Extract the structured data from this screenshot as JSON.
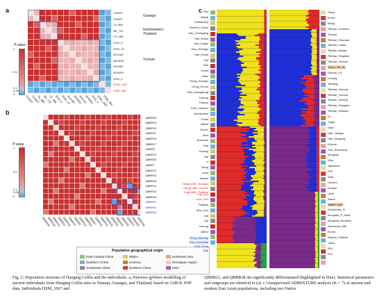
{
  "panel_a": {
    "letter": "a",
    "pvalue_label": "P value",
    "colorbar_ticks": [
      "1",
      "0.5",
      "0.1",
      "0.05",
      "0"
    ],
    "row_labels": [
      "GXNS7",
      "GXNS7",
      "Tk_366",
      "BK_737",
      "LP_396",
      "DSG_9",
      "DSG_10",
      "WXLM2",
      "WXWS2",
      "WXLM1",
      "WXWS1",
      "DSG_4",
      "DSM_1067",
      "DSM_484"
    ],
    "col_labels": [
      "GXNS7",
      "GXNS7",
      "Tk_366",
      "BK_737",
      "LP_396",
      "DSG_9",
      "DSG_10",
      "WXLM2",
      "WXWS2",
      "WXLM1",
      "WXWS1",
      "DSG_4",
      "DSM_1067",
      "DSM_484"
    ],
    "group_labels": [
      "Guangxi",
      "Northwestern Thailand",
      "Yunnan"
    ],
    "red_labels": [
      "DSM_1067",
      "DSM_484"
    ]
  },
  "panel_b": {
    "letter": "b",
    "pvalue_label": "P value",
    "colorbar_ticks": [
      "1",
      "0.5",
      "0.1",
      "0.05",
      "0"
    ],
    "row_labels": [
      "QBBR28",
      "QBBR19",
      "QBBR13",
      "QBBR11",
      "QBBR16",
      "QBBR17",
      "QBBR5",
      "QBBR14",
      "QBBR34",
      "QBBR7",
      "QBBR12",
      "QBBR15",
      "QBBR18",
      "QBBR21",
      "QBBR23",
      "QBBR25",
      "QBBR27",
      "QBBR32",
      "QBBR26"
    ],
    "col_labels": [
      "QBBR28",
      "QBBR19",
      "QBBR13",
      "QBBR11",
      "QBBR16",
      "QBBR17",
      "QBBR5",
      "QBBR14",
      "QBBR34",
      "QBBR7",
      "QBBR12",
      "QBBR15",
      "QBBR18",
      "QBBR21",
      "QBBR23",
      "QBBR25",
      "QBBR27",
      "QBBR32",
      "QBBR26"
    ],
    "highlight_rows": [
      "QBBR21",
      "QBBR28",
      "QBBR25"
    ]
  },
  "panel_c": {
    "letter": "c",
    "left_labels": [
      "Ami",
      "Atayal",
      "Kankanaey",
      "Hezhen_Tuvan",
      "Han_Chongqing",
      "Han_Hubei",
      "Han_Fujian",
      "Han_Guangxi",
      "Han_Hubei",
      "Yao",
      "She",
      "Gelao",
      "Miao",
      "Dong_Guangxi",
      "Dong_Hunan",
      "Han_Guangdong",
      "Hmong",
      "Paiwan",
      "Kinh_Vietnam",
      "Vietnamese",
      "Cham",
      "Mlabri",
      "Khmer",
      "Mon",
      "Burmese",
      "Thai",
      "Zhuang",
      "Dai",
      "Li",
      "Nung",
      "Lahu",
      "Mayan",
      "BoDeOldCat",
      "Vietnam_LN",
      "Thai_Iron",
      "Laos_Iron",
      "Pallawa",
      "Mon_Iron",
      "Inle",
      "Dai",
      "Hmong",
      "GBHU",
      "Cambodian",
      "Other"
    ],
    "right_labels": [
      "Dang",
      "Khmu",
      "Mang",
      "Tibetan_Chamdo",
      "Sherpa",
      "Tibetan_Shannan",
      "Tibetan_Lhasa",
      "Tibetan_Nagqu",
      "Tibetan_Shigatse",
      "Tibetan_Yunnan",
      "Upper_Ok_Ny",
      "Guinan_LN",
      "Lubang",
      "Tamang",
      "Tibetan_Xinlong",
      "Tibetan_Yunnan",
      "Tibetan_Xinlong",
      "Tibetan_Gangshe",
      "Tibetan_Gannan",
      "Tu",
      "Yugur",
      "Daur",
      "Han_Jiangsu",
      "Han_Zhejiang",
      "Korean",
      "Han_Shandong",
      "Mongolia",
      "Xibo",
      "Japanese",
      "FPF",
      "Daur",
      "Hezhen",
      "Oroqen",
      "Ulchi",
      "Nanai",
      "QBBR_1067",
      "DevilsGate_N",
      "Mongolia_E_Medi",
      "Mongolia_Neolithic",
      "Xiaowuxia_MN",
      "Evenk",
      "Eskimo_Patfield",
      "Yakut",
      "ESL",
      "PCL"
    ],
    "red_labels": [
      "HangCoffin_Guangxi",
      "HangCoffin_Yunnan",
      "LogCoffin_Thailand"
    ],
    "blue_labels": [
      "Dong_Nanning",
      "Thai_Sukhothai",
      "Luka_Dong",
      "Thai"
    ]
  },
  "legend": {
    "title": "Population geographical origin",
    "items": [
      {
        "label": "East Coastal China",
        "color": "#8fbf6e"
      },
      {
        "label": "MSEA",
        "color": "#d9c96a"
      },
      {
        "label": "Northeast Asia",
        "color": "#e9a0a0"
      },
      {
        "label": "Southern China",
        "color": "#6bb3dc"
      },
      {
        "label": "America",
        "color": "#c97c2c"
      },
      {
        "label": "Himalayan region",
        "color": "#f1d5a0"
      },
      {
        "label": "Southwest China",
        "color": "#8a8a8a"
      },
      {
        "label": "Northern China",
        "color": "#d23a3a"
      },
      {
        "label": "ISEA",
        "color": "#a45ab5"
      }
    ]
  },
  "caption_left": "Fig. 2 | Population structure of Hanging Coffin and Bo individuals. a, Pairwise qpWave modelling of ancient individuals from Hanging Coffin sites in Yunnan, Guangxi, and Thailand, based on 1240 K SNP data. Individuals DSM_1067 and",
  "caption_right": "QBBR21, and QBBR28 are significantly differentiated (highlighted in blue). Statistical parameters and outgroups are identical to (a). c Unsupervised ADMIXTURE analysis (K = 7) of ancient and modern East Asian populations, including two Native",
  "colors": {
    "red": "#c8302f",
    "pink": "#e9a9a9",
    "blue": "#5aa3d9",
    "ancestry_blue": "#1f2fd8",
    "ancestry_yellow": "#f0e21a",
    "ancestry_red": "#e02a2a",
    "ancestry_purple": "#7b2a8a",
    "ancestry_green": "#28a045"
  }
}
